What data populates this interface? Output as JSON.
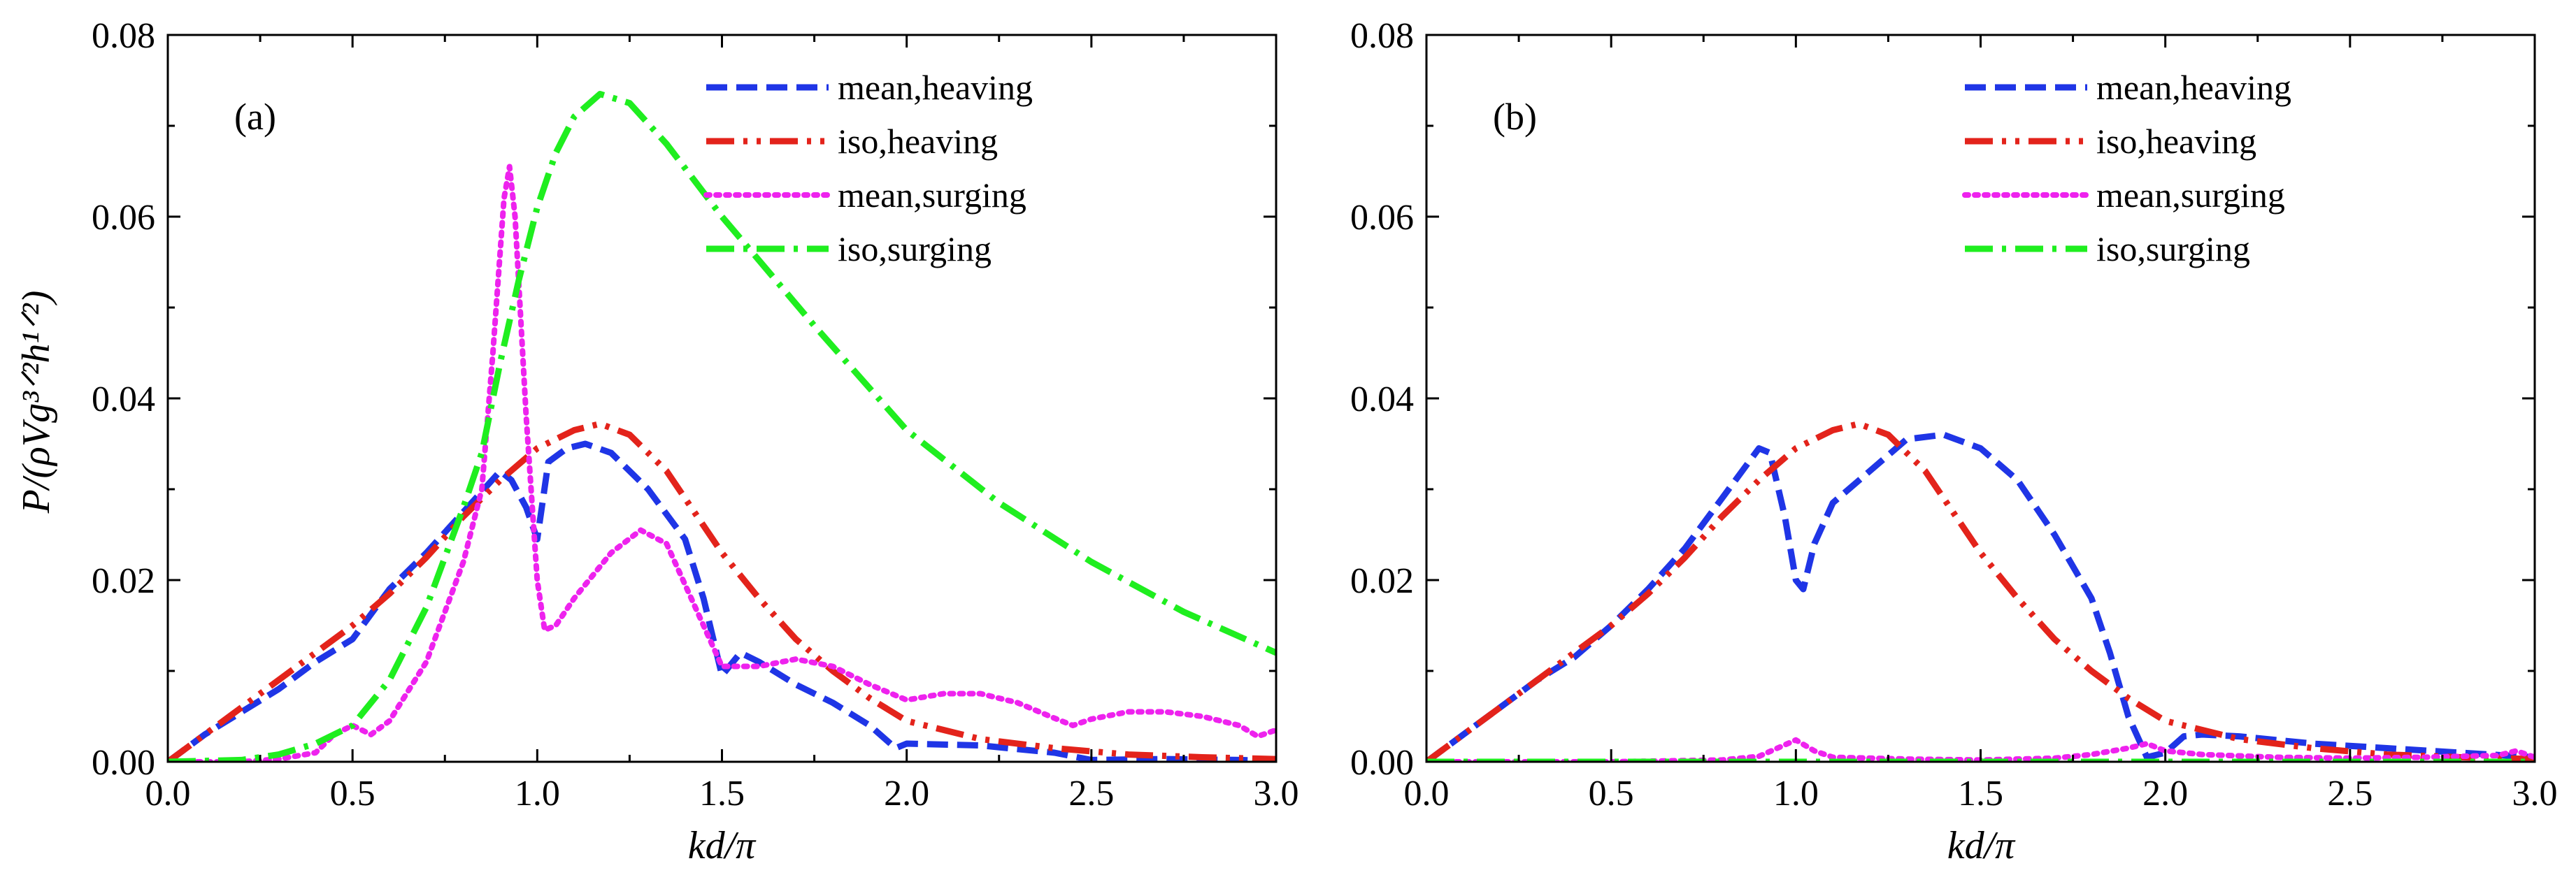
{
  "y_axis_label": "P/(ρVg³ᐟ²h¹ᐟ²)",
  "x_axis_label": "kd/π",
  "chart_data": [
    {
      "type": "line",
      "panel_label": "(a)",
      "xlabel": "kd/π",
      "ylabel": "P/(ρVg^{3/2}h^{1/2})",
      "xlim": [
        0.0,
        3.0
      ],
      "ylim": [
        0.0,
        0.08
      ],
      "xticks": [
        "0.0",
        "0.5",
        "1.0",
        "1.5",
        "2.0",
        "2.5",
        "3.0"
      ],
      "yticks": [
        "0.00",
        "0.02",
        "0.04",
        "0.06",
        "0.08"
      ],
      "legend_position": "top-right",
      "series": [
        {
          "name": "mean,heaving",
          "color": "#1f35e6",
          "style": "dash",
          "points": [
            [
              0.0,
              0.0
            ],
            [
              0.1,
              0.003
            ],
            [
              0.2,
              0.0055
            ],
            [
              0.3,
              0.008
            ],
            [
              0.4,
              0.011
            ],
            [
              0.5,
              0.0135
            ],
            [
              0.6,
              0.019
            ],
            [
              0.7,
              0.023
            ],
            [
              0.8,
              0.0275
            ],
            [
              0.9,
              0.032
            ],
            [
              0.93,
              0.031
            ],
            [
              0.97,
              0.028
            ],
            [
              1.0,
              0.0245
            ],
            [
              1.03,
              0.033
            ],
            [
              1.08,
              0.0345
            ],
            [
              1.13,
              0.035
            ],
            [
              1.2,
              0.034
            ],
            [
              1.3,
              0.03
            ],
            [
              1.4,
              0.0245
            ],
            [
              1.45,
              0.018
            ],
            [
              1.5,
              0.0095
            ],
            [
              1.55,
              0.012
            ],
            [
              1.6,
              0.011
            ],
            [
              1.7,
              0.0085
            ],
            [
              1.8,
              0.0065
            ],
            [
              1.9,
              0.004
            ],
            [
              1.97,
              0.0015
            ],
            [
              2.0,
              0.002
            ],
            [
              2.2,
              0.0018
            ],
            [
              2.4,
              0.001
            ],
            [
              2.5,
              0.0002
            ],
            [
              2.7,
              0.0003
            ],
            [
              2.9,
              0.0002
            ],
            [
              3.0,
              0.0001
            ]
          ]
        },
        {
          "name": "iso,heaving",
          "color": "#e3231b",
          "style": "dash-dot-dot",
          "points": [
            [
              0.0,
              0.0
            ],
            [
              0.1,
              0.003
            ],
            [
              0.2,
              0.006
            ],
            [
              0.3,
              0.009
            ],
            [
              0.4,
              0.012
            ],
            [
              0.5,
              0.015
            ],
            [
              0.6,
              0.0185
            ],
            [
              0.7,
              0.0225
            ],
            [
              0.8,
              0.027
            ],
            [
              0.9,
              0.031
            ],
            [
              1.0,
              0.0345
            ],
            [
              1.1,
              0.0365
            ],
            [
              1.17,
              0.0372
            ],
            [
              1.25,
              0.036
            ],
            [
              1.35,
              0.032
            ],
            [
              1.45,
              0.026
            ],
            [
              1.5,
              0.023
            ],
            [
              1.6,
              0.018
            ],
            [
              1.7,
              0.0135
            ],
            [
              1.8,
              0.01
            ],
            [
              1.9,
              0.007
            ],
            [
              2.0,
              0.0045
            ],
            [
              2.2,
              0.0025
            ],
            [
              2.4,
              0.0015
            ],
            [
              2.6,
              0.0008
            ],
            [
              2.8,
              0.0005
            ],
            [
              3.0,
              0.0003
            ]
          ]
        },
        {
          "name": "mean,surging",
          "color": "#ee22ee",
          "style": "dot",
          "points": [
            [
              0.0,
              0.0
            ],
            [
              0.2,
              0.0
            ],
            [
              0.3,
              0.0003
            ],
            [
              0.4,
              0.001
            ],
            [
              0.45,
              0.003
            ],
            [
              0.5,
              0.004
            ],
            [
              0.55,
              0.003
            ],
            [
              0.6,
              0.0045
            ],
            [
              0.7,
              0.011
            ],
            [
              0.8,
              0.022
            ],
            [
              0.85,
              0.03
            ],
            [
              0.88,
              0.045
            ],
            [
              0.91,
              0.062
            ],
            [
              0.925,
              0.0655
            ],
            [
              0.94,
              0.06
            ],
            [
              0.97,
              0.038
            ],
            [
              1.0,
              0.02
            ],
            [
              1.02,
              0.0145
            ],
            [
              1.05,
              0.015
            ],
            [
              1.1,
              0.018
            ],
            [
              1.2,
              0.023
            ],
            [
              1.28,
              0.0255
            ],
            [
              1.35,
              0.024
            ],
            [
              1.45,
              0.015
            ],
            [
              1.5,
              0.0105
            ],
            [
              1.6,
              0.0105
            ],
            [
              1.7,
              0.0113
            ],
            [
              1.8,
              0.0105
            ],
            [
              1.9,
              0.0085
            ],
            [
              2.0,
              0.0068
            ],
            [
              2.1,
              0.0075
            ],
            [
              2.2,
              0.0075
            ],
            [
              2.3,
              0.0065
            ],
            [
              2.4,
              0.0048
            ],
            [
              2.45,
              0.004
            ],
            [
              2.5,
              0.0047
            ],
            [
              2.6,
              0.0055
            ],
            [
              2.7,
              0.0055
            ],
            [
              2.8,
              0.005
            ],
            [
              2.9,
              0.004
            ],
            [
              2.95,
              0.0028
            ],
            [
              3.0,
              0.0035
            ]
          ]
        },
        {
          "name": "iso,surging",
          "color": "#1fee1f",
          "style": "dash-dot",
          "points": [
            [
              0.0,
              0.0
            ],
            [
              0.2,
              0.0002
            ],
            [
              0.3,
              0.0008
            ],
            [
              0.4,
              0.002
            ],
            [
              0.5,
              0.004
            ],
            [
              0.6,
              0.009
            ],
            [
              0.7,
              0.017
            ],
            [
              0.8,
              0.028
            ],
            [
              0.85,
              0.034
            ],
            [
              0.9,
              0.044
            ],
            [
              0.95,
              0.053
            ],
            [
              1.0,
              0.061
            ],
            [
              1.05,
              0.067
            ],
            [
              1.1,
              0.071
            ],
            [
              1.17,
              0.0735
            ],
            [
              1.25,
              0.0725
            ],
            [
              1.35,
              0.068
            ],
            [
              1.5,
              0.06
            ],
            [
              1.75,
              0.048
            ],
            [
              2.0,
              0.0365
            ],
            [
              2.25,
              0.0285
            ],
            [
              2.5,
              0.022
            ],
            [
              2.75,
              0.0165
            ],
            [
              3.0,
              0.012
            ]
          ]
        }
      ]
    },
    {
      "type": "line",
      "panel_label": "(b)",
      "xlabel": "kd/π",
      "ylabel": "",
      "xlim": [
        0.0,
        3.0
      ],
      "ylim": [
        0.0,
        0.08
      ],
      "xticks": [
        "0.0",
        "0.5",
        "1.0",
        "1.5",
        "2.0",
        "2.5",
        "3.0"
      ],
      "yticks": [
        "0.00",
        "0.02",
        "0.04",
        "0.06",
        "0.08"
      ],
      "legend_position": "top-right",
      "series": [
        {
          "name": "mean,heaving",
          "color": "#1f35e6",
          "style": "dash",
          "points": [
            [
              0.0,
              0.0
            ],
            [
              0.1,
              0.003
            ],
            [
              0.2,
              0.006
            ],
            [
              0.3,
              0.009
            ],
            [
              0.4,
              0.0115
            ],
            [
              0.5,
              0.015
            ],
            [
              0.6,
              0.019
            ],
            [
              0.7,
              0.0235
            ],
            [
              0.8,
              0.029
            ],
            [
              0.9,
              0.0345
            ],
            [
              0.93,
              0.034
            ],
            [
              0.97,
              0.027
            ],
            [
              1.0,
              0.02
            ],
            [
              1.02,
              0.019
            ],
            [
              1.05,
              0.024
            ],
            [
              1.1,
              0.0285
            ],
            [
              1.2,
              0.032
            ],
            [
              1.3,
              0.0355
            ],
            [
              1.4,
              0.036
            ],
            [
              1.5,
              0.0345
            ],
            [
              1.6,
              0.031
            ],
            [
              1.7,
              0.025
            ],
            [
              1.8,
              0.018
            ],
            [
              1.85,
              0.012
            ],
            [
              1.9,
              0.005
            ],
            [
              1.95,
              0.0005
            ],
            [
              2.0,
              0.001
            ],
            [
              2.05,
              0.0028
            ],
            [
              2.1,
              0.003
            ],
            [
              2.2,
              0.0028
            ],
            [
              2.4,
              0.002
            ],
            [
              2.6,
              0.0015
            ],
            [
              2.8,
              0.001
            ],
            [
              3.0,
              0.0005
            ]
          ]
        },
        {
          "name": "iso,heaving",
          "color": "#e3231b",
          "style": "dash-dot-dot",
          "points": [
            [
              0.0,
              0.0
            ],
            [
              0.1,
              0.003
            ],
            [
              0.2,
              0.006
            ],
            [
              0.3,
              0.009
            ],
            [
              0.4,
              0.012
            ],
            [
              0.5,
              0.015
            ],
            [
              0.6,
              0.0185
            ],
            [
              0.7,
              0.0225
            ],
            [
              0.8,
              0.027
            ],
            [
              0.9,
              0.031
            ],
            [
              1.0,
              0.0345
            ],
            [
              1.1,
              0.0365
            ],
            [
              1.17,
              0.0372
            ],
            [
              1.25,
              0.036
            ],
            [
              1.35,
              0.032
            ],
            [
              1.45,
              0.026
            ],
            [
              1.5,
              0.023
            ],
            [
              1.6,
              0.018
            ],
            [
              1.7,
              0.0135
            ],
            [
              1.8,
              0.01
            ],
            [
              1.9,
              0.007
            ],
            [
              2.0,
              0.0045
            ],
            [
              2.2,
              0.0025
            ],
            [
              2.4,
              0.0015
            ],
            [
              2.6,
              0.0008
            ],
            [
              2.8,
              0.0005
            ],
            [
              3.0,
              0.0003
            ]
          ]
        },
        {
          "name": "mean,surging",
          "color": "#ee22ee",
          "style": "dot",
          "points": [
            [
              0.0,
              0.0
            ],
            [
              0.5,
              0.0
            ],
            [
              0.8,
              0.0002
            ],
            [
              0.9,
              0.0006
            ],
            [
              0.95,
              0.0015
            ],
            [
              1.0,
              0.0024
            ],
            [
              1.05,
              0.0012
            ],
            [
              1.1,
              0.0005
            ],
            [
              1.3,
              0.0003
            ],
            [
              1.5,
              0.0002
            ],
            [
              1.7,
              0.0004
            ],
            [
              1.8,
              0.0008
            ],
            [
              1.9,
              0.0015
            ],
            [
              1.95,
              0.002
            ],
            [
              2.0,
              0.0012
            ],
            [
              2.1,
              0.0008
            ],
            [
              2.3,
              0.0005
            ],
            [
              2.5,
              0.0004
            ],
            [
              2.7,
              0.0005
            ],
            [
              2.9,
              0.0007
            ],
            [
              2.95,
              0.0012
            ],
            [
              3.0,
              0.0005
            ]
          ]
        },
        {
          "name": "iso,surging",
          "color": "#1fee1f",
          "style": "dash-dot",
          "points": [
            [
              0.0,
              0.0
            ],
            [
              0.5,
              0.0
            ],
            [
              1.0,
              0.0
            ],
            [
              1.5,
              0.0
            ],
            [
              2.0,
              0.0
            ],
            [
              2.5,
              0.0
            ],
            [
              3.0,
              0.0
            ]
          ]
        }
      ]
    }
  ]
}
